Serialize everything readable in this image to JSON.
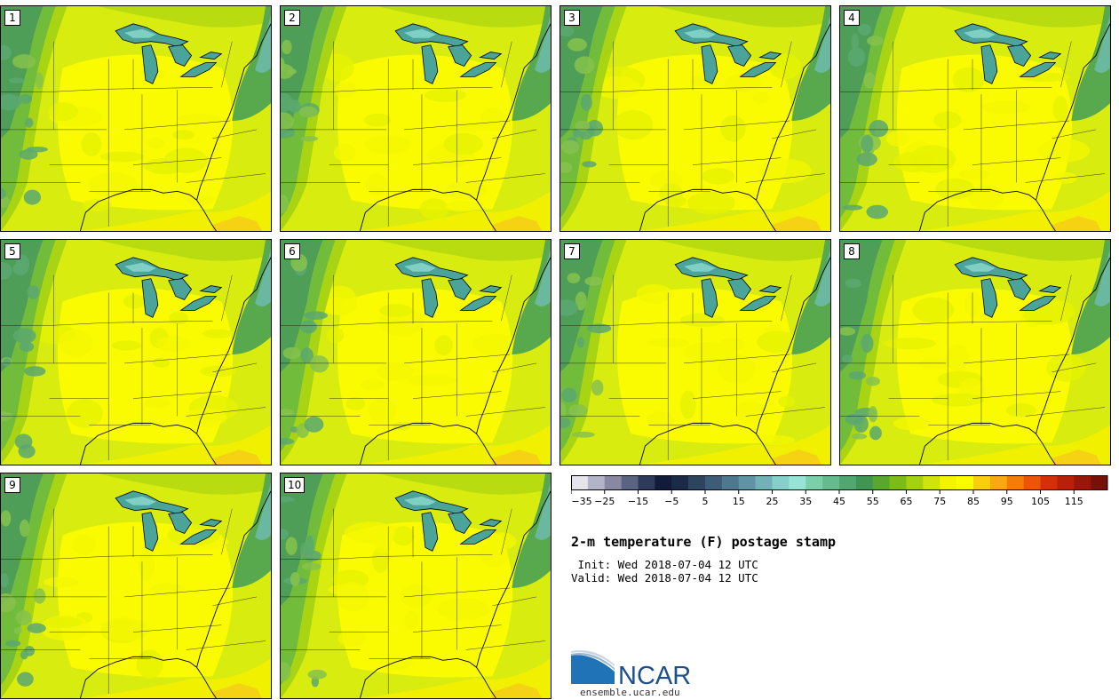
{
  "members": [
    "1",
    "2",
    "3",
    "4",
    "5",
    "6",
    "7",
    "8",
    "9",
    "10"
  ],
  "title": "2-m temperature (F) postage stamp",
  "init_line": " Init: Wed 2018-07-04 12 UTC",
  "valid_line": "Valid: Wed 2018-07-04 12 UTC",
  "logo_text": "NCAR",
  "url": "ensemble.ucar.edu",
  "colorbar": {
    "colors": [
      "#e4e4ea",
      "#b4b4c8",
      "#8888a2",
      "#5a6480",
      "#2e3a5c",
      "#121c3a",
      "#1c2a4a",
      "#2c4460",
      "#3c5c78",
      "#4e7890",
      "#5e94a4",
      "#70b2b8",
      "#86d0cc",
      "#96e4d6",
      "#7ad0a8",
      "#64bc8e",
      "#50a870",
      "#3e9650",
      "#58a82e",
      "#7cbc1a",
      "#a4d210",
      "#d0e40c",
      "#f4f400",
      "#fcfc00",
      "#fccc10",
      "#f8a810",
      "#f47c08",
      "#ec5408",
      "#d43008",
      "#b82008",
      "#981808",
      "#781008"
    ],
    "tick_labels": [
      "−35",
      "−25",
      "−15",
      "−5",
      "5",
      "15",
      "25",
      "35",
      "45",
      "55",
      "65",
      "75",
      "85",
      "95",
      "105",
      "115"
    ]
  }
}
